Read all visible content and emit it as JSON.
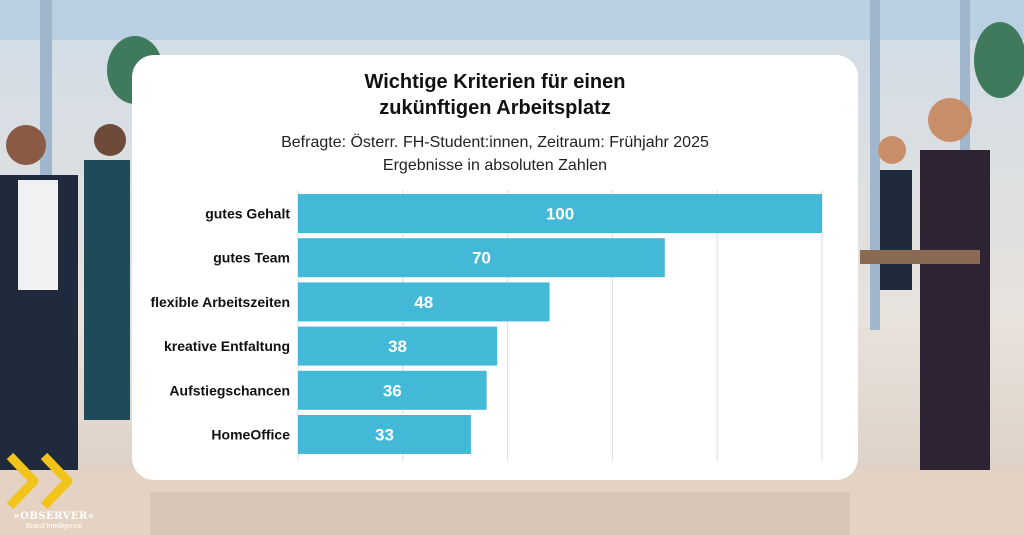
{
  "title_line1": "Wichtige Kriterien für einen",
  "title_line2": "zukünftigen Arbeitsplatz",
  "subtitle_line1": "Befragte: Österr. FH-Student:innen, Zeitraum: Frühjahr 2025",
  "subtitle_line2": "Ergebnisse in absoluten Zahlen",
  "logo": {
    "name": "»OBSERVER«",
    "tagline": "Brand Intelligence"
  },
  "colors": {
    "bar": "#44b9d7",
    "bar_label": "#ffffff",
    "category_label": "#111111",
    "grid": "#dddddd",
    "logo_chevron": "#f2c318"
  },
  "chart_data": {
    "type": "bar",
    "orientation": "horizontal",
    "categories": [
      "gutes Gehalt",
      "gutes Team",
      "flexible Arbeitszeiten",
      "kreative Entfaltung",
      "Aufstiegschancen",
      "HomeOffice"
    ],
    "values": [
      100,
      70,
      48,
      38,
      36,
      33
    ],
    "data_labels": [
      "100",
      "70",
      "48",
      "38",
      "36",
      "33"
    ],
    "xlim": [
      0,
      100
    ],
    "grid": true,
    "legend": "none"
  }
}
